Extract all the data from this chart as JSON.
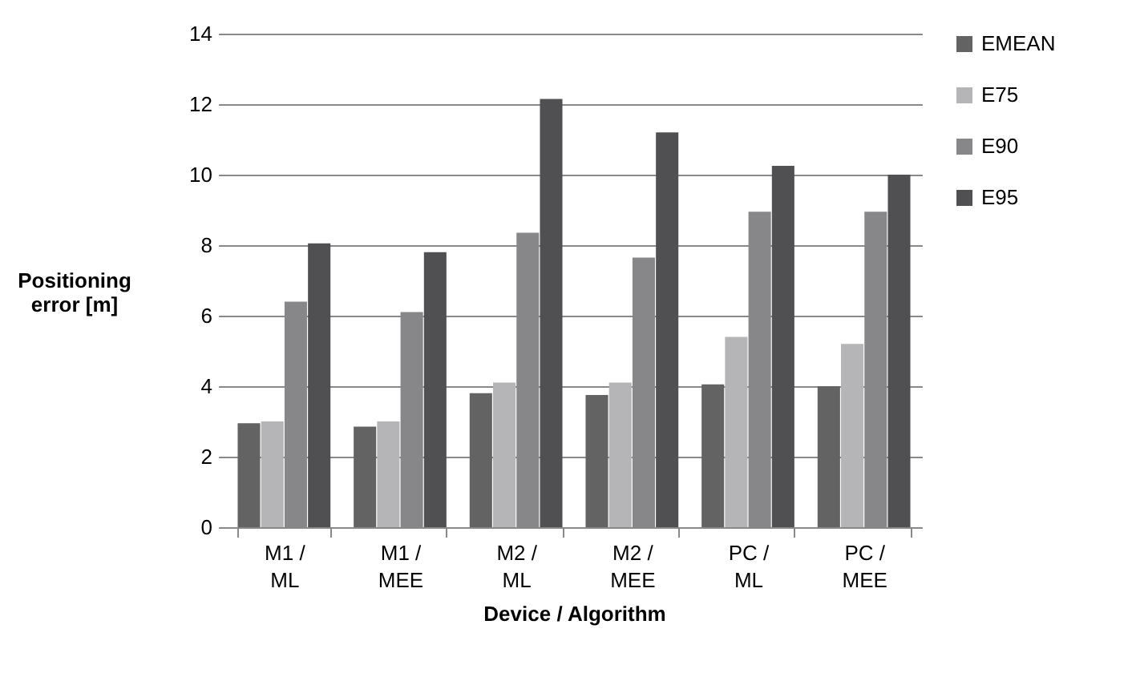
{
  "chart_data": {
    "type": "bar",
    "xlabel": "Device / Algorithm",
    "ylabel": "Positioning error [m]",
    "categories": [
      "M1 / ML",
      "M1 / MEE",
      "M2 / ML",
      "M2 / MEE",
      "PC / ML",
      "PC / MEE"
    ],
    "series": [
      {
        "name": "EMEAN",
        "color": "#636363",
        "values": [
          2.95,
          2.85,
          3.8,
          3.75,
          4.05,
          4.0
        ]
      },
      {
        "name": "E75",
        "color": "#b5b5b7",
        "values": [
          3.0,
          3.0,
          4.1,
          4.1,
          5.4,
          5.2
        ]
      },
      {
        "name": "E90",
        "color": "#87878a",
        "values": [
          6.4,
          6.1,
          8.35,
          7.65,
          8.95,
          8.95
        ]
      },
      {
        "name": "E95",
        "color": "#505052",
        "values": [
          8.05,
          7.8,
          12.15,
          11.2,
          10.25,
          10.0
        ]
      }
    ],
    "ylim": [
      0,
      14
    ],
    "yticks": [
      0,
      2,
      4,
      6,
      8,
      10,
      12,
      14
    ],
    "grid": "y",
    "legend": "right"
  }
}
